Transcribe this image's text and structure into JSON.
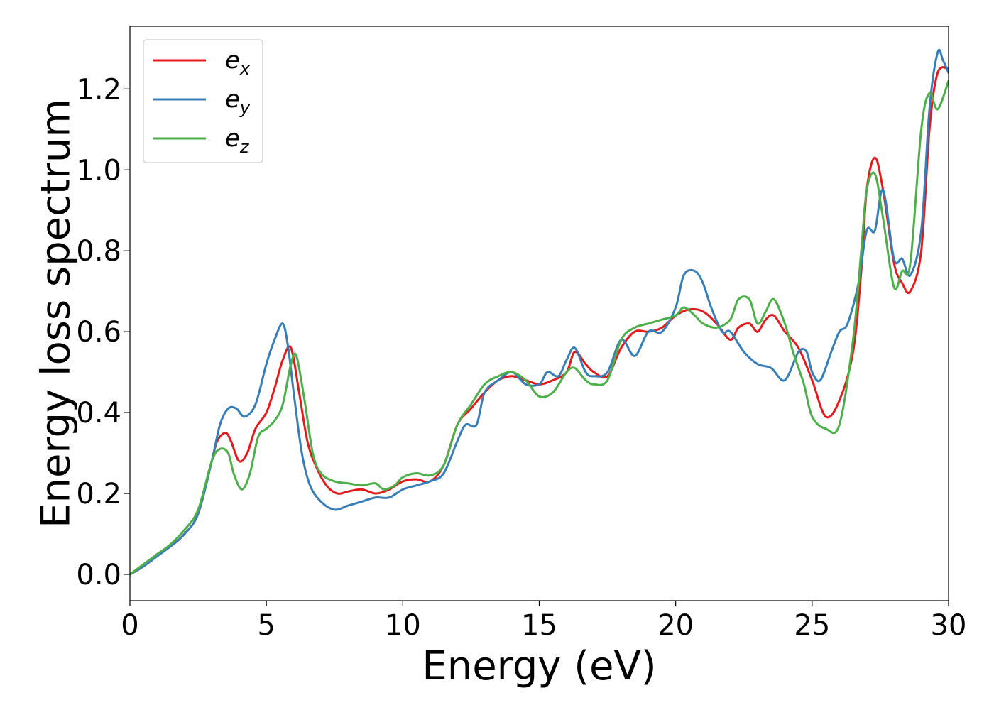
{
  "chart_data": {
    "type": "line",
    "xlabel": "Energy (eV)",
    "ylabel": "Energy loss spectrum",
    "xlim": [
      0,
      30
    ],
    "ylim": [
      -0.065,
      1.355
    ],
    "xticks": [
      0,
      5,
      10,
      15,
      20,
      25,
      30
    ],
    "yticks": [
      0.0,
      0.2,
      0.4,
      0.6,
      0.8,
      1.0,
      1.2
    ],
    "xtick_labels": [
      "0",
      "5",
      "10",
      "15",
      "20",
      "25",
      "30"
    ],
    "ytick_labels": [
      "0.0",
      "0.2",
      "0.4",
      "0.6",
      "0.8",
      "1.0",
      "1.2"
    ],
    "grid": false,
    "legend_position": "top-left",
    "series": [
      {
        "name": "e_x",
        "legend_main": "e",
        "legend_sub": "x",
        "color": "#e41a1c",
        "x": [
          0,
          0.5,
          1,
          1.5,
          2,
          2.5,
          3,
          3.2,
          3.5,
          3.7,
          4,
          4.3,
          4.6,
          5,
          5.3,
          5.6,
          5.9,
          6.2,
          6.5,
          6.8,
          7.2,
          7.6,
          8,
          8.5,
          9,
          9.5,
          10,
          10.5,
          11,
          11.5,
          12,
          12.5,
          13,
          13.5,
          14,
          14.5,
          15,
          15.5,
          16,
          16.3,
          16.7,
          17,
          17.5,
          18,
          18.5,
          19,
          19.5,
          20,
          20.5,
          21,
          21.5,
          22,
          22.3,
          22.7,
          23,
          23.3,
          23.6,
          24,
          24.5,
          25,
          25.5,
          26,
          26.5,
          26.8,
          27,
          27.3,
          27.6,
          28,
          28.3,
          28.6,
          29,
          29.3,
          29.6,
          30
        ],
        "y": [
          0,
          0.02,
          0.05,
          0.07,
          0.1,
          0.15,
          0.28,
          0.33,
          0.35,
          0.33,
          0.28,
          0.3,
          0.36,
          0.4,
          0.46,
          0.53,
          0.56,
          0.45,
          0.33,
          0.27,
          0.22,
          0.2,
          0.205,
          0.21,
          0.2,
          0.21,
          0.23,
          0.235,
          0.23,
          0.27,
          0.37,
          0.41,
          0.45,
          0.48,
          0.49,
          0.48,
          0.47,
          0.48,
          0.5,
          0.55,
          0.52,
          0.5,
          0.49,
          0.56,
          0.6,
          0.6,
          0.61,
          0.64,
          0.655,
          0.65,
          0.62,
          0.58,
          0.61,
          0.62,
          0.6,
          0.63,
          0.64,
          0.6,
          0.56,
          0.48,
          0.39,
          0.43,
          0.55,
          0.75,
          0.95,
          1.03,
          0.95,
          0.77,
          0.72,
          0.7,
          0.8,
          1.1,
          1.24,
          1.25
        ]
      },
      {
        "name": "e_y",
        "legend_main": "e",
        "legend_sub": "y",
        "color": "#377eb8",
        "x": [
          0,
          0.5,
          1,
          1.5,
          2,
          2.5,
          3,
          3.3,
          3.6,
          3.9,
          4.2,
          4.6,
          5,
          5.3,
          5.6,
          5.8,
          6,
          6.3,
          6.6,
          7,
          7.5,
          8,
          8.5,
          9,
          9.5,
          10,
          10.5,
          11,
          11.5,
          12,
          12.3,
          12.7,
          13,
          13.5,
          14,
          14.5,
          15,
          15.3,
          15.7,
          16,
          16.3,
          16.7,
          17,
          17.5,
          18,
          18.5,
          19,
          19.5,
          20,
          20.3,
          20.7,
          21,
          21.3,
          21.7,
          22,
          22.5,
          23,
          23.5,
          24,
          24.5,
          24.8,
          25,
          25.3,
          25.7,
          26,
          26.3,
          26.7,
          27,
          27.3,
          27.6,
          28,
          28.3,
          28.6,
          29,
          29.3,
          29.6,
          29.8,
          30
        ],
        "y": [
          0,
          0.02,
          0.045,
          0.07,
          0.1,
          0.15,
          0.28,
          0.37,
          0.41,
          0.41,
          0.39,
          0.42,
          0.52,
          0.58,
          0.62,
          0.56,
          0.45,
          0.3,
          0.22,
          0.18,
          0.16,
          0.17,
          0.18,
          0.19,
          0.19,
          0.21,
          0.22,
          0.23,
          0.25,
          0.33,
          0.37,
          0.37,
          0.45,
          0.48,
          0.5,
          0.47,
          0.47,
          0.5,
          0.49,
          0.53,
          0.56,
          0.5,
          0.49,
          0.5,
          0.58,
          0.54,
          0.6,
          0.6,
          0.66,
          0.74,
          0.75,
          0.72,
          0.66,
          0.6,
          0.6,
          0.55,
          0.52,
          0.51,
          0.48,
          0.55,
          0.55,
          0.5,
          0.48,
          0.55,
          0.6,
          0.62,
          0.72,
          0.85,
          0.85,
          0.95,
          0.78,
          0.78,
          0.74,
          0.85,
          1.15,
          1.29,
          1.27,
          1.24
        ]
      },
      {
        "name": "e_z",
        "legend_main": "e",
        "legend_sub": "z",
        "color": "#4daf4a",
        "x": [
          0,
          0.5,
          1,
          1.5,
          2,
          2.5,
          3,
          3.3,
          3.6,
          3.8,
          4.1,
          4.4,
          4.7,
          5,
          5.3,
          5.6,
          5.9,
          6.1,
          6.4,
          6.7,
          7,
          7.5,
          8,
          8.5,
          9,
          9.3,
          9.7,
          10,
          10.5,
          11,
          11.5,
          12,
          12.5,
          13,
          13.5,
          14,
          14.5,
          15,
          15.5,
          16,
          16.3,
          16.7,
          17,
          17.5,
          18,
          18.5,
          19,
          19.5,
          20,
          20.3,
          20.7,
          21,
          21.5,
          22,
          22.3,
          22.7,
          23,
          23.3,
          23.6,
          24,
          24.3,
          24.7,
          25,
          25.5,
          26,
          26.5,
          26.8,
          27,
          27.3,
          27.6,
          28,
          28.3,
          28.6,
          29,
          29.3,
          29.6,
          30
        ],
        "y": [
          0,
          0.025,
          0.05,
          0.075,
          0.11,
          0.16,
          0.28,
          0.31,
          0.3,
          0.25,
          0.21,
          0.25,
          0.34,
          0.36,
          0.38,
          0.42,
          0.52,
          0.54,
          0.43,
          0.3,
          0.25,
          0.23,
          0.225,
          0.22,
          0.225,
          0.21,
          0.22,
          0.24,
          0.25,
          0.245,
          0.27,
          0.37,
          0.42,
          0.47,
          0.49,
          0.5,
          0.48,
          0.44,
          0.45,
          0.5,
          0.51,
          0.48,
          0.47,
          0.48,
          0.58,
          0.61,
          0.62,
          0.63,
          0.64,
          0.66,
          0.64,
          0.62,
          0.61,
          0.63,
          0.68,
          0.68,
          0.62,
          0.65,
          0.68,
          0.62,
          0.55,
          0.47,
          0.39,
          0.36,
          0.37,
          0.58,
          0.8,
          0.95,
          0.99,
          0.88,
          0.71,
          0.75,
          0.77,
          1.1,
          1.19,
          1.15,
          1.22
        ]
      }
    ]
  }
}
